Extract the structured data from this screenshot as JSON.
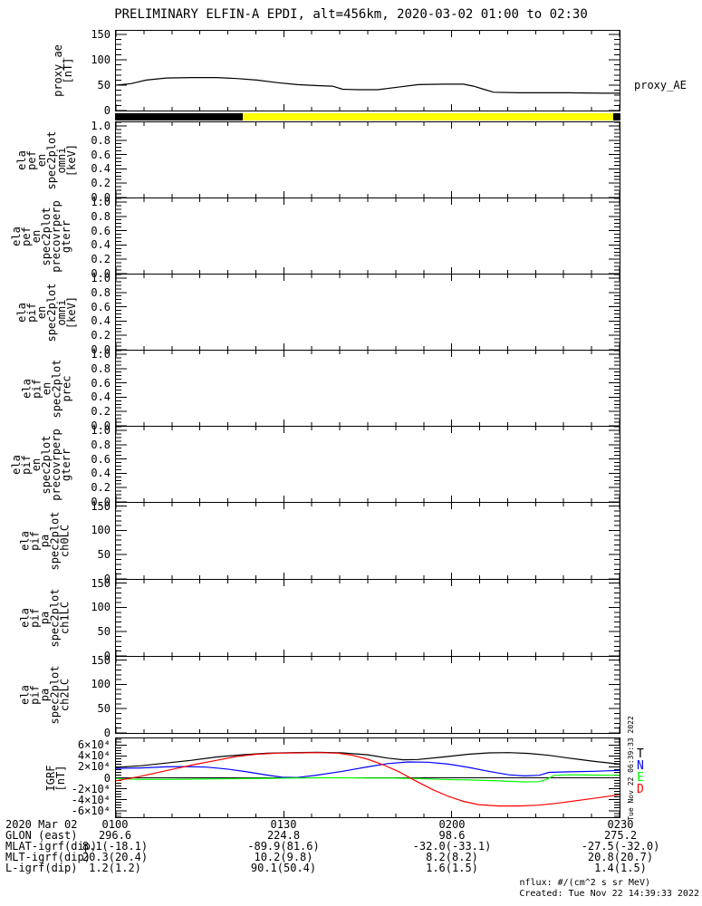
{
  "title": "PRELIMINARY ELFIN-A EPDI, alt=456km, 2020-03-02 01:00 to 02:30",
  "right_labels": {
    "proxy_ae": "proxy_AE"
  },
  "watermark_vertical": "Tue Nov 22 06:39:33 2022",
  "footer": {
    "nflux": "nflux: #/(cm^2 s sr MeV)",
    "created": "Created: Tue Nov 22 14:39:33 2022"
  },
  "igrf_legend": [
    {
      "label": "T",
      "color": "#000000"
    },
    {
      "label": "N",
      "color": "#0000ff"
    },
    {
      "label": "E",
      "color": "#00ff00"
    },
    {
      "label": "D",
      "color": "#ff0000"
    }
  ],
  "bottom_axis": {
    "rows": [
      {
        "label": "2020 Mar 02",
        "values": [
          "0100",
          "0130",
          "0200",
          "0230"
        ]
      },
      {
        "label": "GLON (east)",
        "values": [
          "296.6",
          "224.8",
          "98.6",
          "275.2"
        ]
      },
      {
        "label": "MLAT-igrf(dip)",
        "values": [
          "8.1(-18.1)",
          "-89.9(81.6)",
          "-32.0(-33.1)",
          "-27.5(-32.0)"
        ]
      },
      {
        "label": "MLT-igrf(dip)",
        "values": [
          "20.3(20.4)",
          "10.2(9.8)",
          "8.2(8.2)",
          "20.8(20.7)"
        ]
      },
      {
        "label": "L-igrf(dip)",
        "values": [
          "1.2(1.2)",
          "90.1(50.4)",
          "1.6(1.5)",
          "1.4(1.5)"
        ]
      }
    ]
  },
  "chart_data": [
    {
      "type": "line",
      "name": "proxy_ae",
      "label_lines": [
        "proxy_ae",
        "[nT]"
      ],
      "ylim": [
        0,
        157
      ],
      "yminor": 10,
      "yticks": [
        [
          0,
          "0"
        ],
        [
          50,
          "50"
        ],
        [
          100,
          "100"
        ],
        [
          150,
          "150"
        ]
      ],
      "series": [
        {
          "name": "proxy_AE",
          "color": "#000000",
          "points": [
            [
              0,
              50
            ],
            [
              0.03,
              53
            ],
            [
              0.06,
              60
            ],
            [
              0.1,
              64
            ],
            [
              0.15,
              65
            ],
            [
              0.2,
              65
            ],
            [
              0.24,
              63
            ],
            [
              0.28,
              60
            ],
            [
              0.32,
              55
            ],
            [
              0.36,
              51
            ],
            [
              0.4,
              49
            ],
            [
              0.43,
              48
            ],
            [
              0.45,
              42
            ],
            [
              0.48,
              41
            ],
            [
              0.52,
              41
            ],
            [
              0.56,
              46
            ],
            [
              0.6,
              51
            ],
            [
              0.65,
              52
            ],
            [
              0.69,
              52
            ],
            [
              0.71,
              48
            ],
            [
              0.73,
              42
            ],
            [
              0.75,
              36
            ],
            [
              0.8,
              35
            ],
            [
              0.9,
              35
            ],
            [
              0.97,
              34
            ],
            [
              1,
              34
            ]
          ]
        }
      ]
    },
    {
      "type": "bar",
      "name": "fast-segment-bar",
      "segments": [
        {
          "color": "#000000",
          "from": 0.0,
          "to": 0.252
        },
        {
          "color": "#ffff00",
          "from": 0.252,
          "to": 0.985
        },
        {
          "color": "#000000",
          "from": 0.985,
          "to": 1.0
        }
      ]
    },
    {
      "type": "spec",
      "name": "ela_pef_en_spec2plot_omni",
      "label_lines": [
        "ela",
        "pef",
        "en",
        "spec2plot",
        "omni",
        "[keV]"
      ],
      "ylim": [
        0,
        1.05
      ],
      "yminor": 0.05,
      "yticks": [
        [
          0,
          "0.0"
        ],
        [
          0.2,
          "0.2"
        ],
        [
          0.4,
          "0.4"
        ],
        [
          0.6,
          "0.6"
        ],
        [
          0.8,
          "0.8"
        ],
        [
          1,
          "1.0"
        ]
      ],
      "series": []
    },
    {
      "type": "spec",
      "name": "ela_pef_spec2plot_precovrperp_gterr",
      "label_lines": [
        "ela",
        "pef",
        "en",
        "spec2plot",
        "precovrperp",
        "gterr"
      ],
      "ylim": [
        0,
        1.05
      ],
      "yminor": 0.05,
      "yticks": [
        [
          0,
          "0.0"
        ],
        [
          0.2,
          "0.2"
        ],
        [
          0.4,
          "0.4"
        ],
        [
          0.6,
          "0.6"
        ],
        [
          0.8,
          "0.8"
        ],
        [
          1,
          "1.0"
        ]
      ],
      "series": []
    },
    {
      "type": "spec",
      "name": "ela_pif_en_spec2plot_omni",
      "label_lines": [
        "ela",
        "pif",
        "en",
        "spec2plot",
        "omni",
        "[keV]"
      ],
      "ylim": [
        0,
        1.05
      ],
      "yminor": 0.05,
      "yticks": [
        [
          0,
          "0.0"
        ],
        [
          0.2,
          "0.2"
        ],
        [
          0.4,
          "0.4"
        ],
        [
          0.6,
          "0.6"
        ],
        [
          0.8,
          "0.8"
        ],
        [
          1,
          "1.0"
        ]
      ],
      "series": []
    },
    {
      "type": "spec",
      "name": "ela_pif_en_spec2plot_prec",
      "label_lines": [
        "ela",
        "pif",
        "en",
        "spec2plot",
        "prec"
      ],
      "ylim": [
        0,
        1.05
      ],
      "yminor": 0.05,
      "yticks": [
        [
          0,
          "0.0"
        ],
        [
          0.2,
          "0.2"
        ],
        [
          0.4,
          "0.4"
        ],
        [
          0.6,
          "0.6"
        ],
        [
          0.8,
          "0.8"
        ],
        [
          1,
          "1.0"
        ]
      ],
      "series": []
    },
    {
      "type": "spec",
      "name": "ela_pif_spec2plot_precovrperp_gterr",
      "label_lines": [
        "ela",
        "pif",
        "en",
        "spec2plot",
        "precovrperp",
        "gterr"
      ],
      "ylim": [
        0,
        1.05
      ],
      "yminor": 0.05,
      "yticks": [
        [
          0,
          "0.0"
        ],
        [
          0.2,
          "0.2"
        ],
        [
          0.4,
          "0.4"
        ],
        [
          0.6,
          "0.6"
        ],
        [
          0.8,
          "0.8"
        ],
        [
          1,
          "1.0"
        ]
      ],
      "series": []
    },
    {
      "type": "spec",
      "name": "ela_pif_pa_spec2plot_ch0LC",
      "label_lines": [
        "ela",
        "pif",
        "pa",
        "spec2plot",
        "ch0LC"
      ],
      "ylim": [
        0,
        157
      ],
      "yminor": 10,
      "yticks": [
        [
          0,
          "0"
        ],
        [
          50,
          "50"
        ],
        [
          100,
          "100"
        ],
        [
          150,
          "150"
        ]
      ],
      "series": []
    },
    {
      "type": "spec",
      "name": "ela_pif_pa_spec2plot_ch1LC",
      "label_lines": [
        "ela",
        "pif",
        "pa",
        "spec2plot",
        "ch1LC"
      ],
      "ylim": [
        0,
        157
      ],
      "yminor": 10,
      "yticks": [
        [
          0,
          "0"
        ],
        [
          50,
          "50"
        ],
        [
          100,
          "100"
        ],
        [
          150,
          "150"
        ]
      ],
      "series": []
    },
    {
      "type": "spec",
      "name": "ela_pif_pa_spec2plot_ch2LC",
      "label_lines": [
        "ela",
        "pif",
        "pa",
        "spec2plot",
        "ch2LC"
      ],
      "ylim": [
        0,
        157
      ],
      "yminor": 10,
      "yticks": [
        [
          0,
          "0"
        ],
        [
          50,
          "50"
        ],
        [
          100,
          "100"
        ],
        [
          150,
          "150"
        ]
      ],
      "series": []
    },
    {
      "type": "line",
      "name": "igrf",
      "label_lines": [
        "IGRF",
        "[nT]"
      ],
      "unit_note": "y values in units of 10^4 nT",
      "xticks": [
        "0100",
        "0130",
        "0200",
        "0230"
      ],
      "ylim": [
        -7.2,
        7.2
      ],
      "yminor": 0.5,
      "zero_line": true,
      "yticks": [
        [
          6,
          "6×10⁴"
        ],
        [
          4,
          "4×10⁴"
        ],
        [
          2,
          "2×10⁴"
        ],
        [
          0,
          "0"
        ],
        [
          -2,
          "-2×10⁴"
        ],
        [
          -4,
          "-4×10⁴"
        ],
        [
          -6,
          "-6×10⁴"
        ]
      ],
      "series": [
        {
          "name": "T",
          "color": "#000000",
          "points": [
            [
              0,
              1.9
            ],
            [
              0.05,
              2.2
            ],
            [
              0.1,
              2.7
            ],
            [
              0.15,
              3.2
            ],
            [
              0.2,
              3.8
            ],
            [
              0.25,
              4.2
            ],
            [
              0.3,
              4.5
            ],
            [
              0.35,
              4.6
            ],
            [
              0.4,
              4.65
            ],
            [
              0.45,
              4.55
            ],
            [
              0.5,
              4.2
            ],
            [
              0.54,
              3.6
            ],
            [
              0.57,
              3.3
            ],
            [
              0.6,
              3.35
            ],
            [
              0.65,
              3.8
            ],
            [
              0.7,
              4.3
            ],
            [
              0.74,
              4.55
            ],
            [
              0.78,
              4.6
            ],
            [
              0.82,
              4.45
            ],
            [
              0.86,
              4.1
            ],
            [
              0.9,
              3.6
            ],
            [
              0.95,
              3.0
            ],
            [
              1,
              2.5
            ]
          ]
        },
        {
          "name": "N",
          "color": "#0000ff",
          "points": [
            [
              0,
              1.7
            ],
            [
              0.05,
              1.8
            ],
            [
              0.1,
              2.0
            ],
            [
              0.14,
              2.05
            ],
            [
              0.18,
              1.95
            ],
            [
              0.22,
              1.6
            ],
            [
              0.26,
              1.1
            ],
            [
              0.3,
              0.5
            ],
            [
              0.33,
              0.1
            ],
            [
              0.36,
              0.05
            ],
            [
              0.4,
              0.5
            ],
            [
              0.45,
              1.2
            ],
            [
              0.5,
              2.0
            ],
            [
              0.54,
              2.6
            ],
            [
              0.58,
              2.9
            ],
            [
              0.62,
              2.85
            ],
            [
              0.66,
              2.5
            ],
            [
              0.7,
              1.9
            ],
            [
              0.74,
              1.2
            ],
            [
              0.78,
              0.55
            ],
            [
              0.81,
              0.35
            ],
            [
              0.84,
              0.45
            ],
            [
              0.86,
              1.0
            ],
            [
              0.9,
              1.1
            ],
            [
              0.95,
              1.2
            ],
            [
              1,
              1.35
            ]
          ]
        },
        {
          "name": "E",
          "color": "#00ff00",
          "points": [
            [
              0,
              -0.15
            ],
            [
              0.05,
              -0.3
            ],
            [
              0.1,
              -0.3
            ],
            [
              0.15,
              -0.25
            ],
            [
              0.2,
              -0.2
            ],
            [
              0.25,
              -0.15
            ],
            [
              0.3,
              -0.1
            ],
            [
              0.35,
              -0.05
            ],
            [
              0.4,
              0
            ],
            [
              0.45,
              0
            ],
            [
              0.5,
              -0.05
            ],
            [
              0.55,
              -0.05
            ],
            [
              0.6,
              -0.15
            ],
            [
              0.65,
              -0.3
            ],
            [
              0.7,
              -0.4
            ],
            [
              0.74,
              -0.5
            ],
            [
              0.78,
              -0.65
            ],
            [
              0.81,
              -0.75
            ],
            [
              0.84,
              -0.72
            ],
            [
              0.855,
              -0.3
            ],
            [
              0.87,
              0.45
            ],
            [
              0.9,
              0.55
            ],
            [
              0.95,
              0.5
            ],
            [
              1,
              0.45
            ]
          ]
        },
        {
          "name": "D",
          "color": "#ff0000",
          "points": [
            [
              0,
              -0.55
            ],
            [
              0.04,
              0.1
            ],
            [
              0.08,
              0.9
            ],
            [
              0.12,
              1.7
            ],
            [
              0.16,
              2.5
            ],
            [
              0.2,
              3.2
            ],
            [
              0.24,
              3.9
            ],
            [
              0.28,
              4.3
            ],
            [
              0.32,
              4.5
            ],
            [
              0.36,
              4.55
            ],
            [
              0.4,
              4.6
            ],
            [
              0.44,
              4.5
            ],
            [
              0.47,
              4.1
            ],
            [
              0.5,
              3.4
            ],
            [
              0.53,
              2.4
            ],
            [
              0.56,
              1.2
            ],
            [
              0.58,
              0.2
            ],
            [
              0.6,
              -0.8
            ],
            [
              0.63,
              -2.2
            ],
            [
              0.66,
              -3.4
            ],
            [
              0.69,
              -4.3
            ],
            [
              0.72,
              -4.9
            ],
            [
              0.76,
              -5.15
            ],
            [
              0.8,
              -5.15
            ],
            [
              0.84,
              -5.0
            ],
            [
              0.88,
              -4.6
            ],
            [
              0.92,
              -4.1
            ],
            [
              0.96,
              -3.6
            ],
            [
              1,
              -3.1
            ]
          ]
        }
      ]
    }
  ]
}
